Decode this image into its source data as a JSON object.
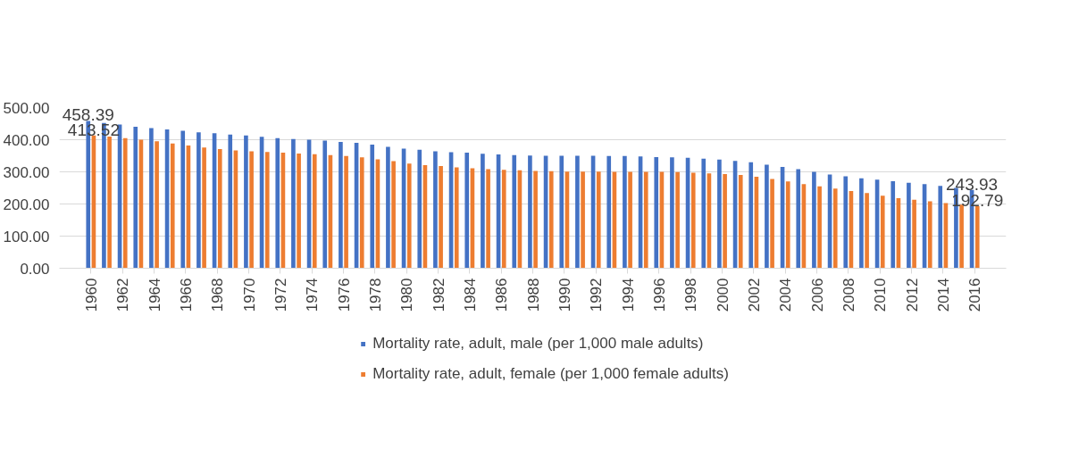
{
  "chart_data": {
    "type": "bar",
    "categories": [
      "1960",
      null,
      "1962",
      null,
      "1964",
      null,
      "1966",
      null,
      "1968",
      null,
      "1970",
      null,
      "1972",
      null,
      "1974",
      null,
      "1976",
      null,
      "1978",
      null,
      "1980",
      null,
      "1982",
      null,
      "1984",
      null,
      "1986",
      null,
      "1988",
      null,
      "1990",
      null,
      "1992",
      null,
      "1994",
      null,
      "1996",
      null,
      "1998",
      null,
      "2000",
      null,
      "2002",
      null,
      "2004",
      null,
      "2006",
      null,
      "2008",
      null,
      "2010",
      null,
      "2012",
      null,
      "2014",
      null,
      "2016"
    ],
    "series": [
      {
        "name": "Mortality rate, adult, male (per 1,000 male adults)",
        "color": "#4472c4",
        "values": [
          458.39,
          452,
          447,
          440,
          436,
          432,
          428,
          423,
          420,
          416,
          413,
          409,
          405,
          402,
          400,
          397,
          393,
          390,
          385,
          378,
          372,
          369,
          364,
          361,
          360,
          356,
          354,
          352,
          351,
          350,
          350,
          350,
          350,
          349,
          349,
          348,
          346,
          345,
          344,
          341,
          338,
          334,
          330,
          322,
          315,
          308,
          300,
          292,
          286,
          280,
          276,
          271,
          266,
          262,
          256,
          250,
          243.93
        ],
        "value_labels": [
          "458.39",
          null,
          null,
          null,
          null,
          null,
          null,
          null,
          null,
          null,
          null,
          null,
          null,
          null,
          null,
          null,
          null,
          null,
          null,
          null,
          null,
          null,
          null,
          null,
          null,
          null,
          null,
          null,
          null,
          null,
          null,
          null,
          null,
          null,
          null,
          null,
          null,
          null,
          null,
          null,
          null,
          null,
          null,
          null,
          null,
          null,
          null,
          null,
          null,
          null,
          null,
          null,
          null,
          null,
          null,
          null,
          "243.93"
        ]
      },
      {
        "name": "Mortality rate, adult, female (per 1,000 female adults)",
        "color": "#ed7d31",
        "values": [
          413.52,
          410,
          405,
          400,
          395,
          388,
          382,
          376,
          371,
          367,
          364,
          362,
          360,
          357,
          355,
          352,
          349,
          345,
          339,
          333,
          326,
          321,
          318,
          314,
          311,
          308,
          306,
          305,
          303,
          302,
          301,
          301,
          301,
          300,
          300,
          300,
          300,
          299,
          297,
          295,
          293,
          290,
          285,
          278,
          270,
          262,
          255,
          248,
          240,
          234,
          226,
          218,
          213,
          208,
          203,
          198,
          192.79
        ],
        "value_labels": [
          "413.52",
          null,
          null,
          null,
          null,
          null,
          null,
          null,
          null,
          null,
          null,
          null,
          null,
          null,
          null,
          null,
          null,
          null,
          null,
          null,
          null,
          null,
          null,
          null,
          null,
          null,
          null,
          null,
          null,
          null,
          null,
          null,
          null,
          null,
          null,
          null,
          null,
          null,
          null,
          null,
          null,
          null,
          null,
          null,
          null,
          null,
          null,
          null,
          null,
          null,
          null,
          null,
          null,
          null,
          null,
          null,
          "192.79"
        ]
      }
    ],
    "ylim": [
      0,
      500
    ],
    "yticks": [
      {
        "value": 0,
        "label": "0.00"
      },
      {
        "value": 100,
        "label": "100.00"
      },
      {
        "value": 200,
        "label": "200.00"
      },
      {
        "value": 300,
        "label": "300.00"
      },
      {
        "value": 400,
        "label": "400.00"
      },
      {
        "value": 500,
        "label": "500.00"
      }
    ],
    "grid": "y",
    "legend": "bottom"
  }
}
